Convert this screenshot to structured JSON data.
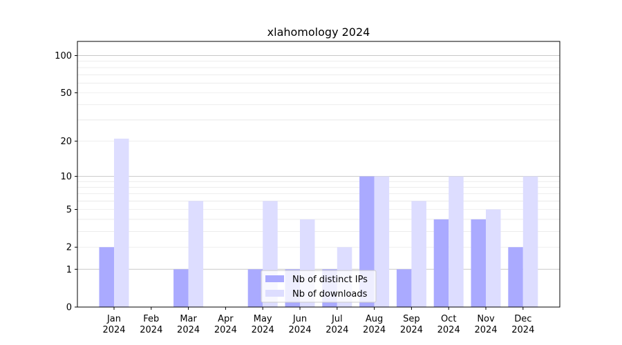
{
  "chart_data": {
    "type": "bar",
    "title": "xlahomology 2024",
    "xlabel": "",
    "ylabel": "",
    "y_scale": "symlog",
    "ylim": [
      0,
      130
    ],
    "y_ticks": [
      0,
      1,
      2,
      5,
      10,
      20,
      50,
      100
    ],
    "categories": [
      [
        "Jan",
        "2024"
      ],
      [
        "Feb",
        "2024"
      ],
      [
        "Mar",
        "2024"
      ],
      [
        "Apr",
        "2024"
      ],
      [
        "May",
        "2024"
      ],
      [
        "Jun",
        "2024"
      ],
      [
        "Jul",
        "2024"
      ],
      [
        "Aug",
        "2024"
      ],
      [
        "Sep",
        "2024"
      ],
      [
        "Oct",
        "2024"
      ],
      [
        "Nov",
        "2024"
      ],
      [
        "Dec",
        "2024"
      ]
    ],
    "series": [
      {
        "name": "Nb of distinct IPs",
        "color": "#aaaaff",
        "values": [
          2,
          0,
          1,
          0,
          1,
          1,
          1,
          10,
          1,
          4,
          4,
          2
        ]
      },
      {
        "name": "Nb of downloads",
        "color": "#ddddff",
        "values": [
          21,
          0,
          6,
          0,
          6,
          4,
          2,
          10,
          6,
          10,
          5,
          10
        ]
      }
    ],
    "grid": true,
    "legend_position": "bottom-center"
  }
}
